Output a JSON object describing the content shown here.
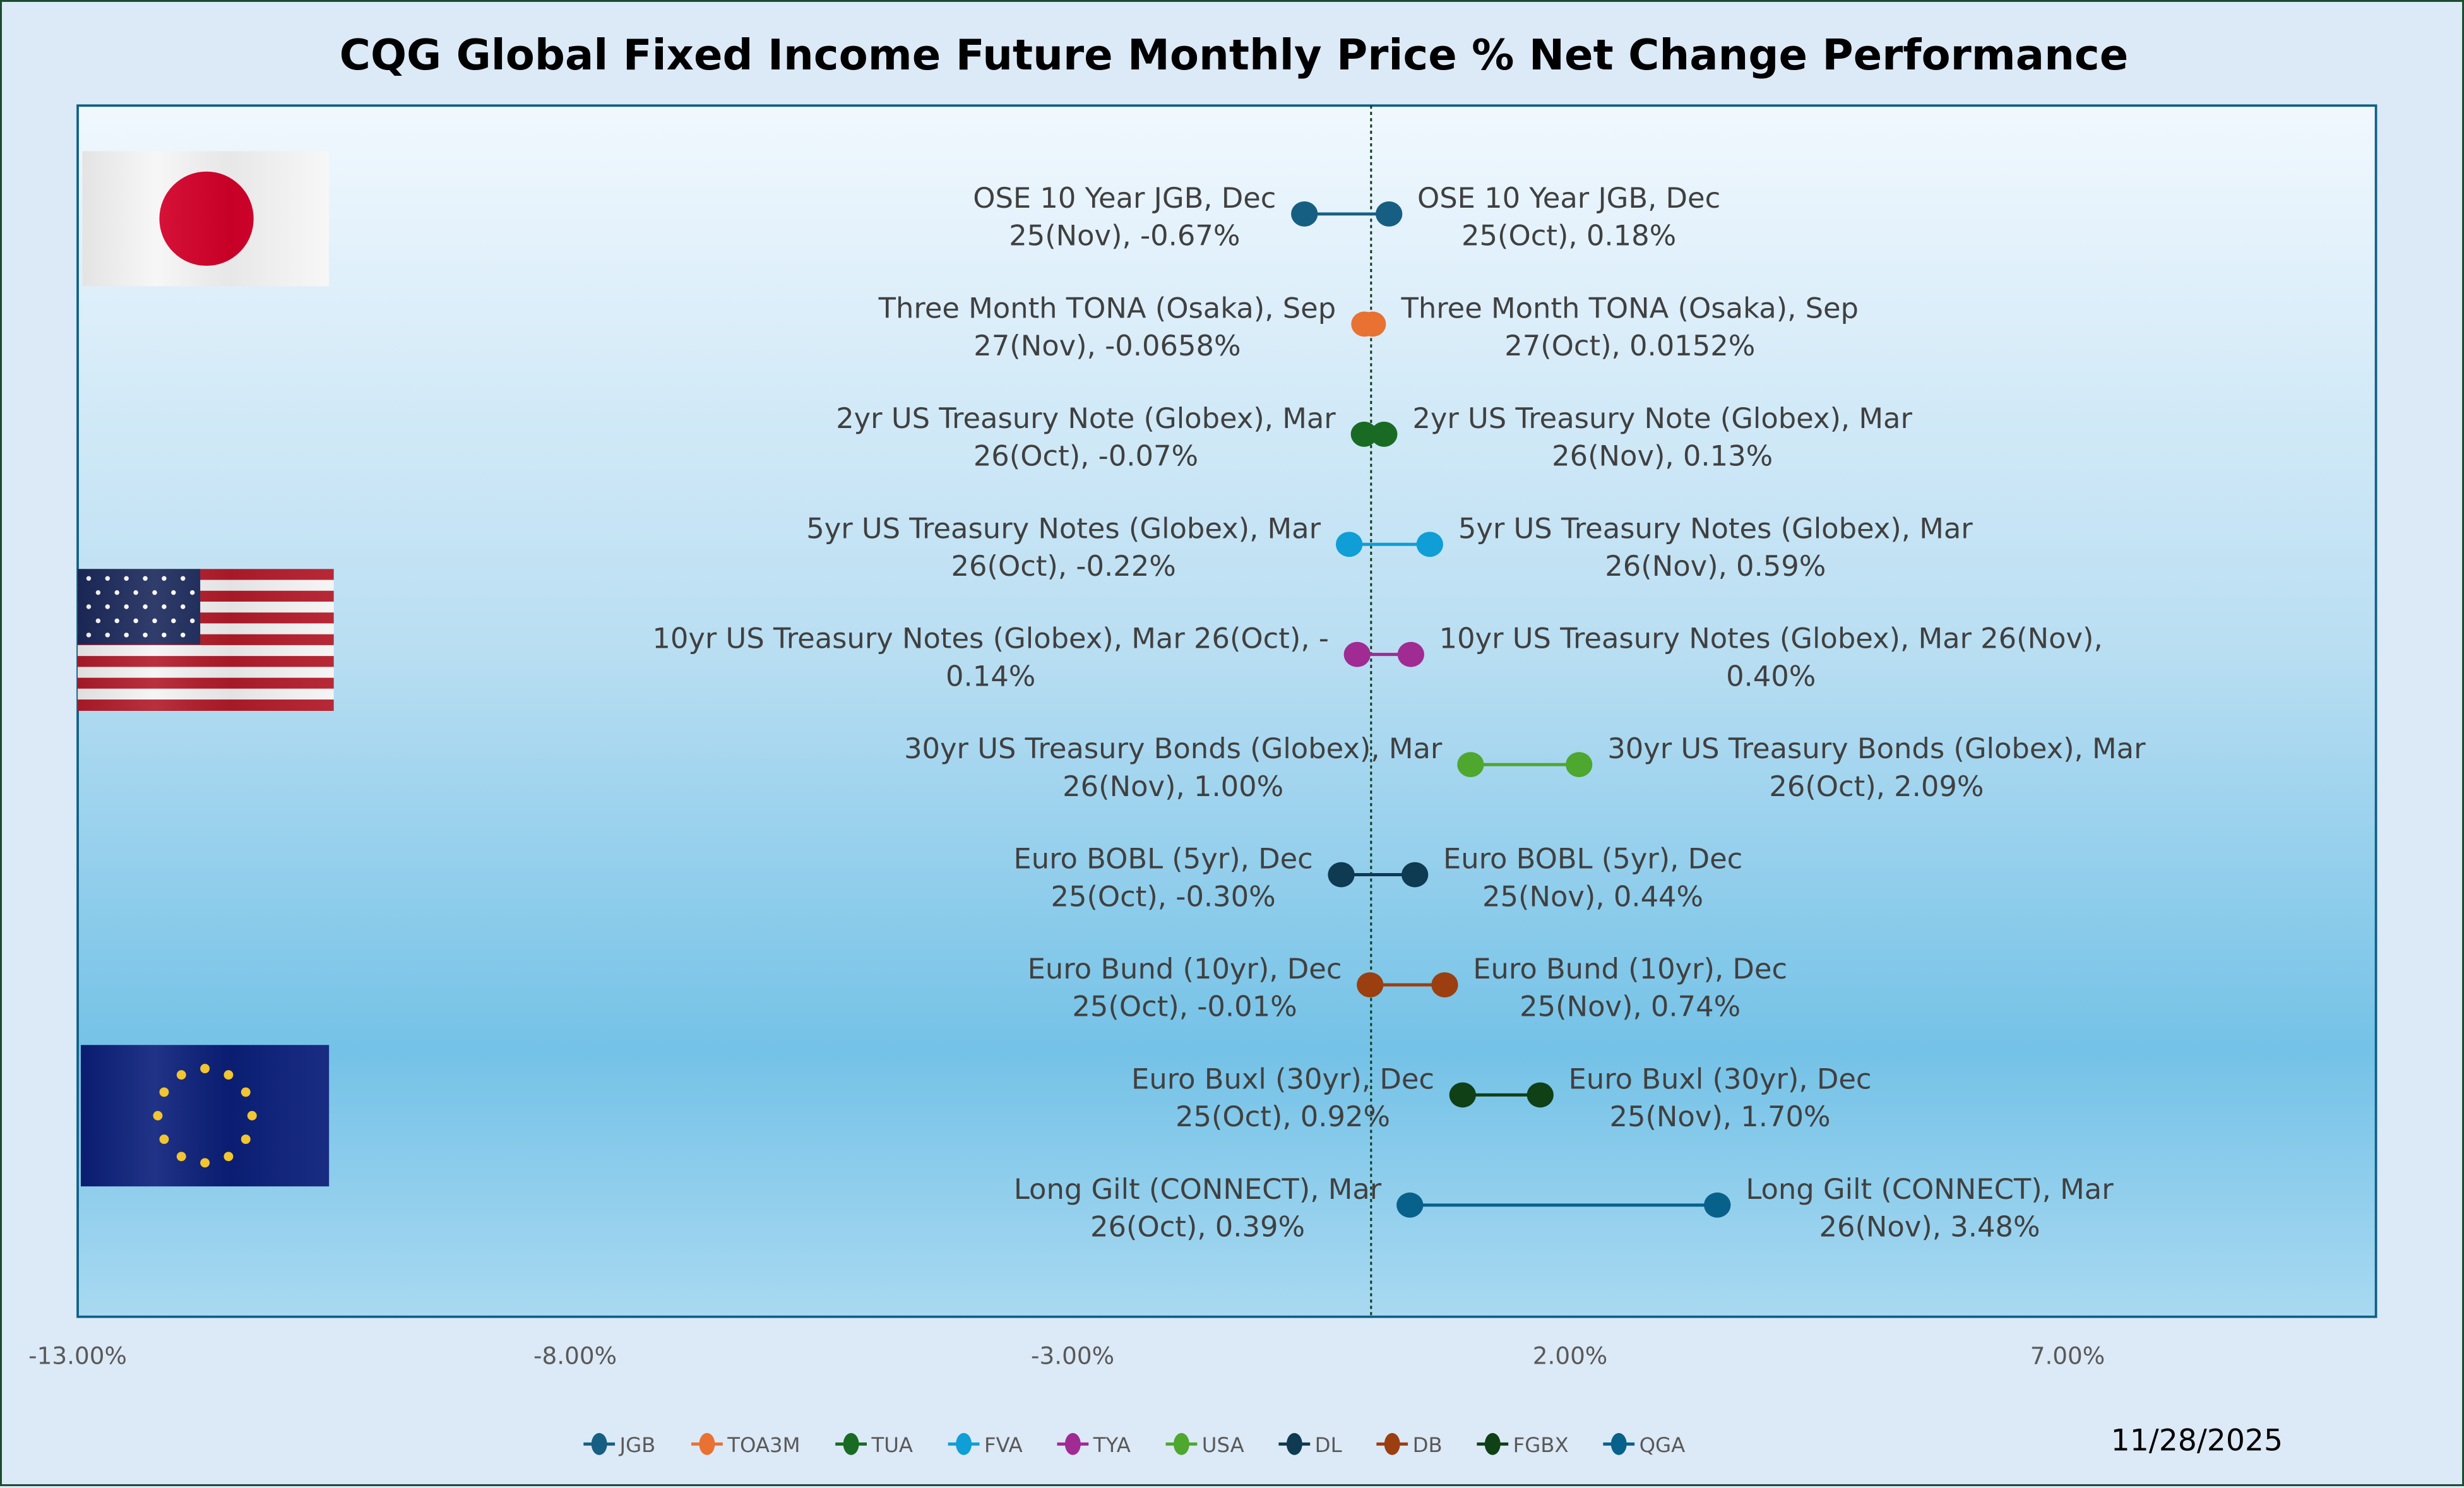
{
  "chart_data": {
    "type": "dumbbell",
    "title": "CQG Global Fixed Income Future Monthly Price % Net Change Performance",
    "date": "11/28/2025",
    "xlim": [
      -13,
      10.1
    ],
    "x_ticks": [
      -13,
      -8,
      -3,
      2,
      7
    ],
    "x_tick_labels": [
      "-13.00%",
      "-8.00%",
      "-3.00%",
      "2.00%",
      "7.00%"
    ],
    "reference_line": 0,
    "grid": false,
    "legend_position": "bottom",
    "rows": [
      {
        "symbol": "JGB",
        "color": "#165f82",
        "left": {
          "value": -0.67,
          "lines": [
            "OSE 10 Year JGB, Dec",
            "25(Nov), -0.67%"
          ]
        },
        "right": {
          "value": 0.18,
          "lines": [
            "OSE 10 Year JGB, Dec",
            "25(Oct), 0.18%"
          ]
        }
      },
      {
        "symbol": "TOA3M",
        "color": "#e97132",
        "left": {
          "value": -0.0658,
          "lines": [
            "Three Month TONA (Osaka), Sep",
            "27(Nov), -0.0658%"
          ]
        },
        "right": {
          "value": 0.0152,
          "lines": [
            "Three Month TONA (Osaka), Sep",
            "27(Oct), 0.0152%"
          ]
        }
      },
      {
        "symbol": "TUA",
        "color": "#196b24",
        "left": {
          "value": -0.07,
          "lines": [
            "2yr US Treasury Note (Globex), Mar",
            "26(Oct), -0.07%"
          ]
        },
        "right": {
          "value": 0.13,
          "lines": [
            "2yr US Treasury Note (Globex), Mar",
            "26(Nov), 0.13%"
          ]
        }
      },
      {
        "symbol": "FVA",
        "color": "#0f9ed5",
        "left": {
          "value": -0.22,
          "lines": [
            "5yr US Treasury Notes (Globex), Mar",
            "26(Oct), -0.22%"
          ]
        },
        "right": {
          "value": 0.59,
          "lines": [
            "5yr US Treasury Notes (Globex), Mar",
            "26(Nov), 0.59%"
          ]
        }
      },
      {
        "symbol": "TYA",
        "color": "#a02b93",
        "left": {
          "value": -0.14,
          "lines": [
            "10yr US Treasury Notes (Globex), Mar 26(Oct), -",
            "0.14%"
          ]
        },
        "right": {
          "value": 0.4,
          "lines": [
            "10yr US Treasury Notes (Globex), Mar 26(Nov),",
            "0.40%"
          ]
        }
      },
      {
        "symbol": "USA",
        "color": "#4ea72e",
        "left": {
          "value": 1.0,
          "lines": [
            "30yr US Treasury Bonds (Globex), Mar",
            "26(Nov), 1.00%"
          ]
        },
        "right": {
          "value": 2.09,
          "lines": [
            "30yr US Treasury Bonds (Globex), Mar",
            "26(Oct), 2.09%"
          ]
        }
      },
      {
        "symbol": "DL",
        "color": "#0e3a52",
        "left": {
          "value": -0.3,
          "lines": [
            "Euro BOBL (5yr), Dec",
            "25(Oct), -0.30%"
          ]
        },
        "right": {
          "value": 0.44,
          "lines": [
            "Euro BOBL (5yr), Dec",
            "25(Nov), 0.44%"
          ]
        }
      },
      {
        "symbol": "DB",
        "color": "#9b3e10",
        "left": {
          "value": -0.01,
          "lines": [
            "Euro Bund (10yr), Dec",
            "25(Oct), -0.01%"
          ]
        },
        "right": {
          "value": 0.74,
          "lines": [
            "Euro Bund (10yr), Dec",
            "25(Nov), 0.74%"
          ]
        }
      },
      {
        "symbol": "FGBX",
        "color": "#0f4016",
        "left": {
          "value": 0.92,
          "lines": [
            "Euro Buxl (30yr), Dec",
            "25(Oct), 0.92%"
          ]
        },
        "right": {
          "value": 1.7,
          "lines": [
            "Euro Buxl (30yr), Dec",
            "25(Nov), 1.70%"
          ]
        }
      },
      {
        "symbol": "QGA",
        "color": "#08618a",
        "left": {
          "value": 0.39,
          "lines": [
            "Long Gilt (CONNECT), Mar",
            "26(Oct), 0.39%"
          ]
        },
        "right": {
          "value": 3.48,
          "lines": [
            "Long Gilt (CONNECT), Mar",
            "26(Nov), 3.48%"
          ]
        }
      }
    ],
    "flags": [
      "japan-flag",
      "us-flag",
      "eu-flag"
    ]
  }
}
